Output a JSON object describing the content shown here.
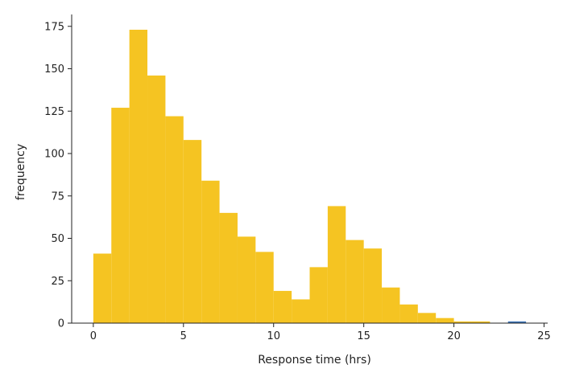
{
  "chart_data": {
    "type": "bar",
    "title": "",
    "xlabel": "Response time (hrs)",
    "ylabel": "frequency",
    "xlim": [
      -1.2,
      25.2
    ],
    "ylim": [
      0,
      182
    ],
    "xticks": [
      0,
      5,
      10,
      15,
      20,
      25
    ],
    "yticks": [
      0,
      25,
      50,
      75,
      100,
      125,
      150,
      175
    ],
    "grid": false,
    "legend": "none",
    "bin_edges": [
      0,
      1,
      2,
      3,
      4,
      5,
      6,
      7,
      8,
      9,
      10,
      11,
      12,
      13,
      14,
      15,
      16,
      17,
      18,
      19,
      20,
      21,
      22,
      23,
      24
    ],
    "series": [
      {
        "color": "#f5c422",
        "values": [
          41,
          127,
          173,
          146,
          122,
          108,
          84,
          65,
          51,
          42,
          19,
          14,
          33,
          69,
          49,
          44,
          21,
          11,
          6,
          3,
          1,
          1,
          0,
          0
        ]
      },
      {
        "color": "#3b74b8",
        "values": [
          0,
          0,
          0,
          0,
          0,
          0,
          0,
          0,
          0,
          0,
          0,
          0,
          0,
          0,
          0,
          0,
          0,
          0,
          0,
          0,
          0,
          0,
          0,
          1
        ]
      }
    ]
  }
}
